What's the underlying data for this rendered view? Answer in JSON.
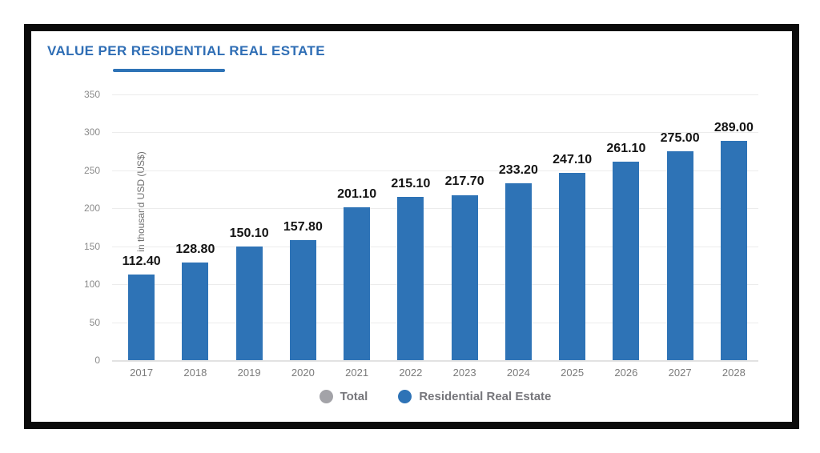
{
  "card": {
    "title": "VALUE PER RESIDENTIAL REAL ESTATE"
  },
  "colors": {
    "title_blue": "#2f6eb5",
    "bar_blue": "#2e73b6",
    "legend_total_gray": "#a3a3a8",
    "legend_residential_blue": "#2e73b6",
    "frame_black": "#0b0b0b",
    "grid_gray": "#ececec",
    "text_gray": "#76767b"
  },
  "chart_data": {
    "type": "bar",
    "title": "VALUE PER RESIDENTIAL REAL ESTATE",
    "categories": [
      "2017",
      "2018",
      "2019",
      "2020",
      "2021",
      "2022",
      "2023",
      "2024",
      "2025",
      "2026",
      "2027",
      "2028"
    ],
    "values": [
      112.4,
      128.8,
      150.1,
      157.8,
      201.1,
      215.1,
      217.7,
      233.2,
      247.1,
      261.1,
      275.0,
      289.0
    ],
    "value_labels": [
      "112.40",
      "128.80",
      "150.10",
      "157.80",
      "201.10",
      "215.10",
      "217.70",
      "233.20",
      "247.10",
      "261.10",
      "275.00",
      "289.00"
    ],
    "xlabel": "",
    "ylabel": "in thousand USD (US$)",
    "ylim": [
      0,
      350
    ],
    "yticks": [
      0,
      50,
      100,
      150,
      200,
      250,
      300,
      350
    ],
    "grid": "horizontal",
    "legend_position": "bottom",
    "legend": [
      {
        "label": "Total",
        "color": "#a3a3a8"
      },
      {
        "label": "Residential Real Estate",
        "color": "#2e73b6"
      }
    ]
  }
}
